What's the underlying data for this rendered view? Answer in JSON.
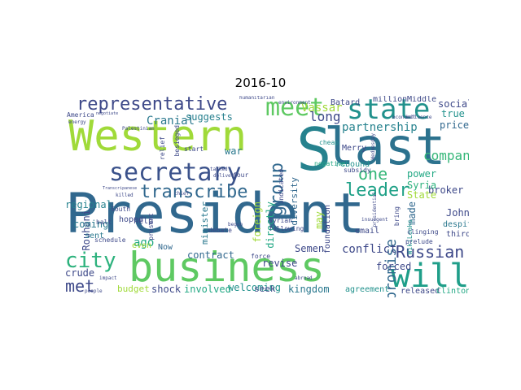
{
  "title": "2016-10",
  "words": [
    {
      "t": "President",
      "c": "#31688e"
    },
    {
      "t": "business",
      "c": "#5ec962"
    },
    {
      "t": "Western",
      "c": "#a0da39"
    },
    {
      "t": "last",
      "c": "#2c728e"
    },
    {
      "t": "secretary",
      "c": "#3b528b"
    },
    {
      "t": "state",
      "c": "#21918c"
    },
    {
      "t": "meet",
      "c": "#5ec962"
    },
    {
      "t": "representative",
      "c": "#3e4989"
    },
    {
      "t": "S",
      "c": "#26828e"
    },
    {
      "t": "will",
      "c": "#1f9e89"
    },
    {
      "t": "transcribe",
      "c": "#31688e"
    },
    {
      "t": "city",
      "c": "#2db27d"
    },
    {
      "t": "leader",
      "c": "#1fa187"
    },
    {
      "t": "Russian",
      "c": "#3e4989"
    },
    {
      "t": "one",
      "c": "#35b779"
    },
    {
      "t": "group",
      "c": "#31688e"
    },
    {
      "t": "met",
      "c": "#3e4989"
    },
    {
      "t": "company",
      "c": "#35b779"
    },
    {
      "t": "partnership",
      "c": "#26828e"
    },
    {
      "t": "Cranial",
      "c": "#2a788e"
    },
    {
      "t": "Vassar",
      "c": "#a0da39"
    },
    {
      "t": "long",
      "c": "#3e4989"
    },
    {
      "t": "suggests",
      "c": "#27808e"
    },
    {
      "t": "promise",
      "c": "#31688e"
    },
    {
      "t": "Rouhani",
      "c": "#3e4989"
    },
    {
      "t": "ago",
      "c": "#22a884"
    },
    {
      "t": "diversity",
      "c": "#31688e"
    },
    {
      "t": "war",
      "c": "#2a788e"
    },
    {
      "t": "power",
      "c": "#22a884"
    },
    {
      "t": "regional",
      "c": "#26828e"
    },
    {
      "t": "coming",
      "c": "#2a788e"
    },
    {
      "t": "city",
      "c": "#2db27d"
    },
    {
      "t": "social",
      "c": "#3e4989"
    },
    {
      "t": "price",
      "c": "#31688e"
    },
    {
      "t": "true",
      "c": "#21918c"
    },
    {
      "t": "broker",
      "c": "#3e4989"
    },
    {
      "t": "Syria",
      "c": "#2db27d"
    },
    {
      "t": "State",
      "c": "#a0da39"
    },
    {
      "t": "made",
      "c": "#31688e"
    },
    {
      "t": "conflict",
      "c": "#3e4989"
    },
    {
      "t": "contract",
      "c": "#31688e"
    },
    {
      "t": "forced",
      "c": "#3e4989"
    },
    {
      "t": "kingdom",
      "c": "#2a788e"
    },
    {
      "t": "welcoming",
      "c": "#21918c"
    },
    {
      "t": "shock",
      "c": "#3e4989"
    },
    {
      "t": "involved",
      "c": "#22a884"
    },
    {
      "t": "crude",
      "c": "#3e4989"
    },
    {
      "t": "budget",
      "c": "#a0da39"
    },
    {
      "t": "seek",
      "c": "#3e4989"
    },
    {
      "t": "minister",
      "c": "#2a788e"
    },
    {
      "t": "foreign",
      "c": "#a0da39"
    },
    {
      "t": "directly",
      "c": "#22a884"
    },
    {
      "t": "revise",
      "c": "#3e4989"
    },
    {
      "t": "Semen",
      "c": "#3e4989"
    },
    {
      "t": "even",
      "c": "#a0da39"
    },
    {
      "t": "Now",
      "c": "#31688e"
    },
    {
      "t": "sent",
      "c": "#2a788e"
    },
    {
      "t": "hoped",
      "c": "#3e4989"
    },
    {
      "t": "help",
      "c": "#3e4989"
    },
    {
      "t": "John",
      "c": "#3e4989"
    },
    {
      "t": "despite",
      "c": "#2a788e"
    },
    {
      "t": "third",
      "c": "#3e4989"
    },
    {
      "t": "released",
      "c": "#3e4989"
    },
    {
      "t": "Clinton",
      "c": "#22a884"
    },
    {
      "t": "agreement",
      "c": "#21918c"
    },
    {
      "t": "email",
      "c": "#3e4989"
    },
    {
      "t": "foundation",
      "c": "#3e4989"
    },
    {
      "t": "Merry",
      "c": "#3e4989"
    },
    {
      "t": "may",
      "c": "#a0da39"
    },
    {
      "t": "Batard",
      "c": "#3e4989"
    },
    {
      "t": "million",
      "c": "#3e4989"
    },
    {
      "t": "Middle",
      "c": "#3e4989"
    },
    {
      "t": "humanitarian",
      "c": "#3e4989"
    },
    {
      "t": "indicated",
      "c": "#3e4989"
    },
    {
      "t": "four",
      "c": "#3e4989"
    },
    {
      "t": "rebound",
      "c": "#21918c"
    },
    {
      "t": "negative",
      "c": "#22a884"
    },
    {
      "t": "subsidy",
      "c": "#3e4989"
    },
    {
      "t": "cheap",
      "c": "#21918c"
    },
    {
      "t": "force",
      "c": "#3e4989"
    },
    {
      "t": "Syrian",
      "c": "#3e4989"
    },
    {
      "t": "following",
      "c": "#3e4989"
    },
    {
      "t": "bring",
      "c": "#3e4989"
    },
    {
      "t": "WikiLeaks",
      "c": "#21918c"
    },
    {
      "t": "clinging",
      "c": "#3e4989"
    },
    {
      "t": "prelude",
      "c": "#3e4989"
    },
    {
      "t": "start",
      "c": "#3e4989"
    },
    {
      "t": "besieged",
      "c": "#3e4989"
    },
    {
      "t": "relief",
      "c": "#3e4989"
    },
    {
      "t": "America",
      "c": "#3e4989"
    },
    {
      "t": "energy",
      "c": "#3e4989"
    },
    {
      "t": "South",
      "c": "#3e4989"
    },
    {
      "t": "halt",
      "c": "#3e4989"
    },
    {
      "t": "schedule",
      "c": "#3e4989"
    },
    {
      "t": "present",
      "c": "#3e4989"
    },
    {
      "t": "debate",
      "c": "#3e4989"
    },
    {
      "t": "impact",
      "c": "#3e4989"
    },
    {
      "t": "Palestinian",
      "c": "#3e4989"
    },
    {
      "t": "environment",
      "c": "#3e4989"
    },
    {
      "t": "presidential",
      "c": "#3e4989"
    },
    {
      "t": "economic",
      "c": "#3e4989"
    },
    {
      "t": "influence",
      "c": "#3e4989"
    },
    {
      "t": "Wednesday",
      "c": "#3e4989"
    },
    {
      "t": "insurgent",
      "c": "#3e4989"
    },
    {
      "t": "Transcripanese",
      "c": "#3e4989"
    },
    {
      "t": "negotiate",
      "c": "#3e4989"
    },
    {
      "t": "killed",
      "c": "#3e4989"
    },
    {
      "t": "chief",
      "c": "#3e4989"
    },
    {
      "t": "begun",
      "c": "#3e4989"
    },
    {
      "t": "talked",
      "c": "#3e4989"
    },
    {
      "t": "delivery",
      "c": "#3e4989"
    },
    {
      "t": "abroad",
      "c": "#3e4989"
    },
    {
      "t": "people",
      "c": "#3e4989"
    }
  ]
}
